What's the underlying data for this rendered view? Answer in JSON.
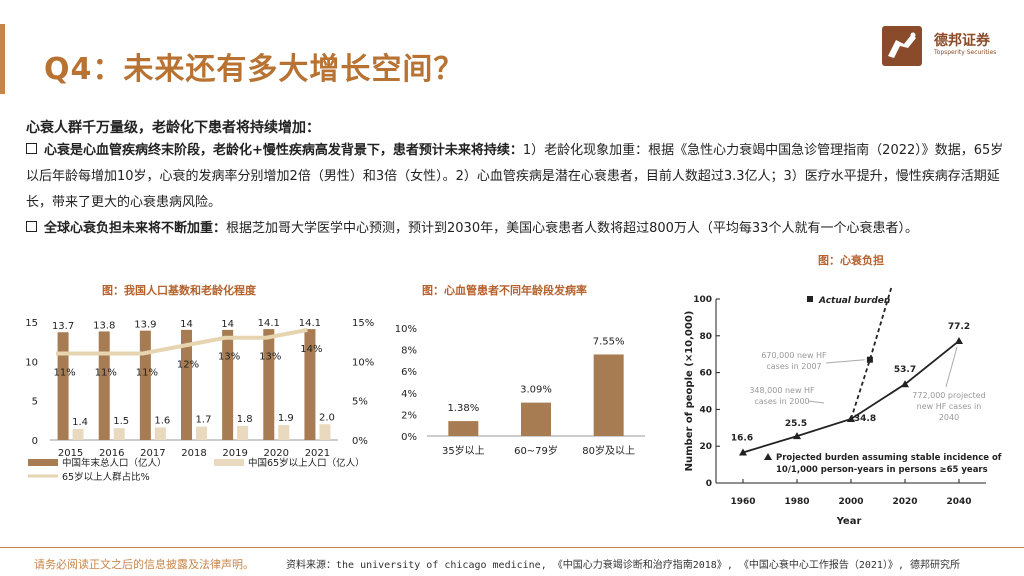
{
  "title": "Q4：未来还有多大增长空间？",
  "brand": {
    "name_cn": "德邦证券",
    "name_en": "Topsperity Securities",
    "accent": "#b87333"
  },
  "headline": "心衰人群千万量级，老龄化下患者将持续增加：",
  "para1": {
    "bold": "心衰是心血管疾病终末阶段，老龄化+慢性疾病高发背景下，患者预计未来将持续：",
    "text": "1）老龄化现象加重：根据《急性心力衰竭中国急诊管理指南（2022）》数据，65岁以后年龄每增加10岁，心衰的发病率分别增加2倍（男性）和3倍（女性）。2）心血管疾病是潜在心衰患者，目前人数超过3.3亿人；3）医疗水平提升，慢性疾病存活期延长，带来了更大的心衰患病风险。"
  },
  "para2": {
    "bold": "全球心衰负担未来将不断加重：",
    "text": "根据芝加哥大学医学中心预测，预计到2030年，美国心衰患者人数将超过800万人（平均每33个人就有一个心衰患者）。"
  },
  "chart_data": [
    {
      "type": "bar",
      "title": "图：我国人口基数和老龄化程度",
      "categories": [
        "2015",
        "2016",
        "2017",
        "2018",
        "2019",
        "2020",
        "2021"
      ],
      "series": [
        {
          "name": "中国年末总人口（亿人）",
          "type": "bar",
          "axis": "left",
          "values": [
            13.7,
            13.8,
            13.9,
            14,
            14,
            14.1,
            14.1
          ],
          "labels": [
            "13.7",
            "13.8",
            "13.9",
            "14",
            "14",
            "14.1",
            "14.1"
          ],
          "color": "#a87c52"
        },
        {
          "name": "中国65岁以上人口（亿人）",
          "type": "bar",
          "axis": "left",
          "values": [
            1.4,
            1.5,
            1.6,
            1.7,
            1.8,
            1.9,
            2.0
          ],
          "labels": [
            "1.4",
            "1.5",
            "1.6",
            "1.7",
            "1.8",
            "1.9",
            "2.0"
          ],
          "color": "#e8d9bf"
        },
        {
          "name": "65岁以上人群占比%",
          "type": "line",
          "axis": "right",
          "values": [
            11,
            11,
            11,
            12,
            13,
            13,
            14
          ],
          "labels": [
            "11%",
            "11%",
            "11%",
            "12%",
            "13%",
            "13%",
            "14%"
          ],
          "color": "#e6d5b0"
        }
      ],
      "yticks": [
        "0",
        "5",
        "10",
        "15"
      ],
      "ylim": [
        0,
        15
      ],
      "y2ticks": [
        "0%",
        "5%",
        "10%",
        "15%"
      ],
      "y2lim": [
        0,
        15
      ]
    },
    {
      "type": "bar",
      "title": "图：心血管患者不同年龄段发病率",
      "categories": [
        "35岁以上",
        "60~79岁",
        "80岁及以上"
      ],
      "values": [
        1.38,
        3.09,
        7.55
      ],
      "labels": [
        "1.38%",
        "3.09%",
        "7.55%"
      ],
      "color": "#a87c52",
      "yticks": [
        "0%",
        "2%",
        "4%",
        "6%",
        "8%",
        "10%"
      ],
      "ylim": [
        0,
        10
      ]
    },
    {
      "type": "line",
      "title": "图：心衰负担",
      "xlabel": "Year",
      "ylabel": "Number of people (×10,000)",
      "xticks": [
        "1960",
        "1980",
        "2000",
        "2020",
        "2040"
      ],
      "xlim": [
        1950,
        2050
      ],
      "yticks": [
        "0",
        "20",
        "40",
        "60",
        "80",
        "100"
      ],
      "ylim": [
        0,
        100
      ],
      "projected": {
        "x": [
          1960,
          1980,
          2000,
          2020,
          2040
        ],
        "y": [
          16.6,
          25.5,
          34.8,
          53.7,
          77.2
        ],
        "labels": [
          "16.6",
          "25.5",
          "34.8",
          "53.7",
          "77.2"
        ]
      },
      "actual": {
        "x": [
          2000,
          2007,
          2015
        ],
        "y": [
          34.8,
          67,
          110
        ]
      },
      "legend_actual": "Actual burden",
      "legend_projected": [
        "Projected burden assuming stable incidence of",
        "10/1,000 person-years in persons ≥65 years"
      ],
      "annotations": [
        {
          "text": [
            "670,000 new HF",
            "cases in 2007"
          ]
        },
        {
          "text": [
            "348,000 new HF",
            "cases in 2000"
          ]
        },
        {
          "text": [
            "772,000 projected",
            "new HF cases in",
            "2040"
          ]
        }
      ]
    }
  ],
  "footer": {
    "disclaimer": "请务必阅读正文之后的信息披露及法律声明。",
    "source": "资料来源：the university of chicago medicine, 《中国心力衰竭诊断和治疗指南2018》, 《中国心衰中心工作报告（2021）》, 德邦研究所"
  }
}
